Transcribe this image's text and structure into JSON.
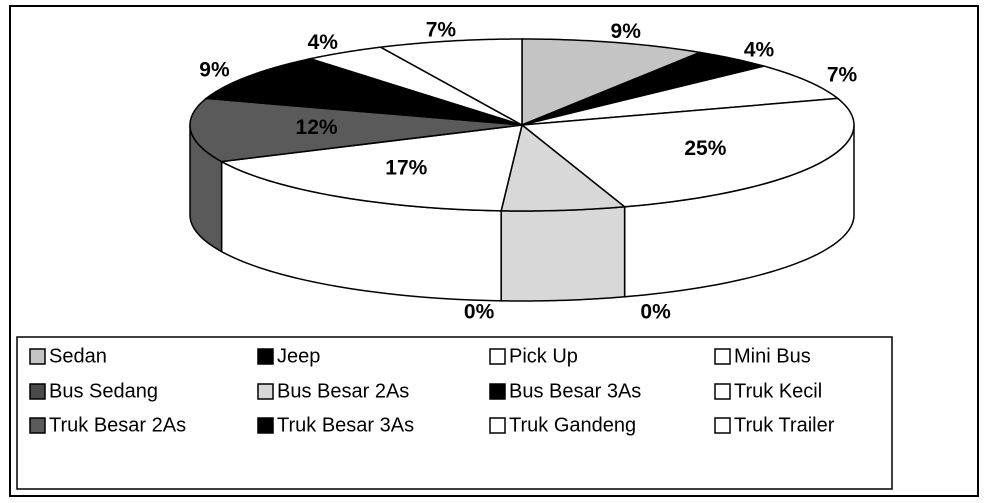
{
  "chart_data": {
    "type": "pie",
    "categories": [
      "Sedan",
      "Jeep",
      "Pick Up",
      "Mini Bus",
      "Bus Sedang",
      "Bus Besar 2As",
      "Bus Besar 3As",
      "Truk Kecil",
      "Truk Besar 2As",
      "Truk Besar 3As",
      "Truk Gandeng",
      "Truk Trailer"
    ],
    "values": [
      9,
      4,
      7,
      25,
      0,
      6,
      0,
      17,
      12,
      9,
      4,
      7
    ],
    "value_labels": [
      "9%",
      "4%",
      "7%",
      "25%",
      "0%",
      null,
      "0%",
      "17%",
      "12%",
      "9%",
      "4%",
      "7%"
    ],
    "colors": [
      "#c4c4c4",
      "#000000",
      "#ffffff",
      "#ffffff",
      "#4a4a4a",
      "#d8d8d8",
      "#000000",
      "#ffffff",
      "#5a5a5a",
      "#000000",
      "#ffffff",
      "#ffffff"
    ],
    "legend": "bottom"
  }
}
